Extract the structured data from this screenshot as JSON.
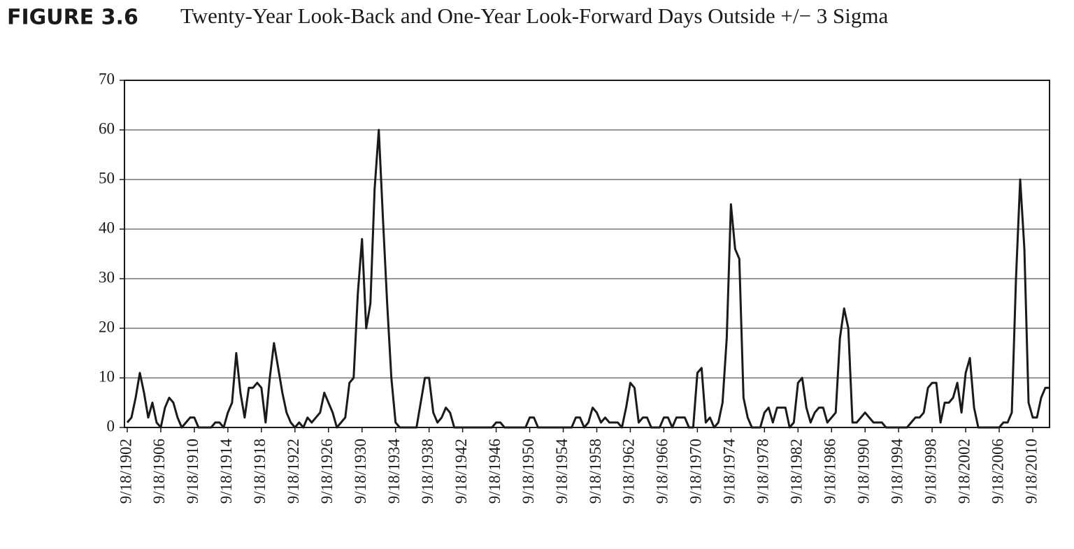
{
  "chart_data": {
    "type": "line",
    "figure_label": "FIGURE 3.6",
    "title": "Twenty-Year Look-Back and One-Year Look-Forward Days Outside +/− 3 Sigma",
    "categories": [
      "9/18/1902",
      null,
      null,
      null,
      null,
      null,
      null,
      null,
      "9/18/1906",
      null,
      null,
      null,
      null,
      null,
      null,
      null,
      "9/18/1910",
      null,
      null,
      null,
      null,
      null,
      null,
      null,
      "9/18/1914",
      null,
      null,
      null,
      null,
      null,
      null,
      null,
      "9/18/1918",
      null,
      null,
      null,
      null,
      null,
      null,
      null,
      "9/18/1922",
      null,
      null,
      null,
      null,
      null,
      null,
      null,
      "9/18/1926",
      null,
      null,
      null,
      null,
      null,
      null,
      null,
      "9/18/1930",
      null,
      null,
      null,
      null,
      null,
      null,
      null,
      "9/18/1934",
      null,
      null,
      null,
      null,
      null,
      null,
      null,
      "9/18/1938",
      null,
      null,
      null,
      null,
      null,
      null,
      null,
      "9/18/1942",
      null,
      null,
      null,
      null,
      null,
      null,
      null,
      "9/18/1946",
      null,
      null,
      null,
      null,
      null,
      null,
      null,
      "9/18/1950",
      null,
      null,
      null,
      null,
      null,
      null,
      null,
      "9/18/1954",
      null,
      null,
      null,
      null,
      null,
      null,
      null,
      "9/18/1958",
      null,
      null,
      null,
      null,
      null,
      null,
      null,
      "9/18/1962",
      null,
      null,
      null,
      null,
      null,
      null,
      null,
      "9/18/1966",
      null,
      null,
      null,
      null,
      null,
      null,
      null,
      "9/18/1970",
      null,
      null,
      null,
      null,
      null,
      null,
      null,
      "9/18/1974",
      null,
      null,
      null,
      null,
      null,
      null,
      null,
      "9/18/1978",
      null,
      null,
      null,
      null,
      null,
      null,
      null,
      "9/18/1982",
      null,
      null,
      null,
      null,
      null,
      null,
      null,
      "9/18/1986",
      null,
      null,
      null,
      null,
      null,
      null,
      null,
      "9/18/1990",
      null,
      null,
      null,
      null,
      null,
      null,
      null,
      "9/18/1994",
      null,
      null,
      null,
      null,
      null,
      null,
      null,
      "9/18/1998",
      null,
      null,
      null,
      null,
      null,
      null,
      null,
      "9/18/2002",
      null,
      null,
      null,
      null,
      null,
      null,
      null,
      "9/18/2006",
      null,
      null,
      null,
      null,
      null,
      null,
      null,
      "9/18/2010",
      null,
      null,
      null,
      null
    ],
    "values": [
      1,
      2,
      6,
      11,
      7,
      2,
      5,
      1,
      0,
      4,
      6,
      5,
      2,
      0,
      1,
      2,
      2,
      0,
      0,
      0,
      0,
      1,
      1,
      0,
      3,
      5,
      15,
      7,
      2,
      8,
      8,
      9,
      8,
      1,
      10,
      17,
      12,
      7,
      3,
      1,
      0,
      1,
      0,
      2,
      1,
      2,
      3,
      7,
      5,
      3,
      0,
      1,
      2,
      9,
      10,
      27,
      38,
      20,
      25,
      48,
      60,
      42,
      25,
      10,
      1,
      0,
      0,
      0,
      0,
      0,
      5,
      10,
      10,
      3,
      1,
      2,
      4,
      3,
      0,
      0,
      0,
      0,
      0,
      0,
      0,
      0,
      0,
      0,
      1,
      1,
      0,
      0,
      0,
      0,
      0,
      0,
      2,
      2,
      0,
      0,
      0,
      0,
      0,
      0,
      0,
      0,
      0,
      2,
      2,
      0,
      1,
      4,
      3,
      1,
      2,
      1,
      1,
      1,
      0,
      4,
      9,
      8,
      1,
      2,
      2,
      0,
      0,
      0,
      2,
      2,
      0,
      2,
      2,
      2,
      0,
      0,
      11,
      12,
      1,
      2,
      0,
      1,
      5,
      18,
      45,
      36,
      34,
      6,
      2,
      0,
      0,
      0,
      3,
      4,
      1,
      4,
      4,
      4,
      0,
      1,
      9,
      10,
      4,
      1,
      3,
      4,
      4,
      1,
      2,
      3,
      18,
      24,
      20,
      1,
      1,
      2,
      3,
      2,
      1,
      1,
      1,
      0,
      0,
      0,
      0,
      0,
      0,
      1,
      2,
      2,
      3,
      8,
      9,
      9,
      1,
      5,
      5,
      6,
      9,
      3,
      11,
      14,
      4,
      0,
      0,
      0,
      0,
      0,
      0,
      1,
      1,
      3,
      30,
      50,
      36,
      5,
      2,
      2,
      6,
      8,
      8
    ],
    "color": "#1a1a1a",
    "ylim": [
      0,
      70
    ],
    "yticks": [
      0,
      10,
      20,
      30,
      40,
      50,
      60,
      70
    ],
    "grid": true
  }
}
